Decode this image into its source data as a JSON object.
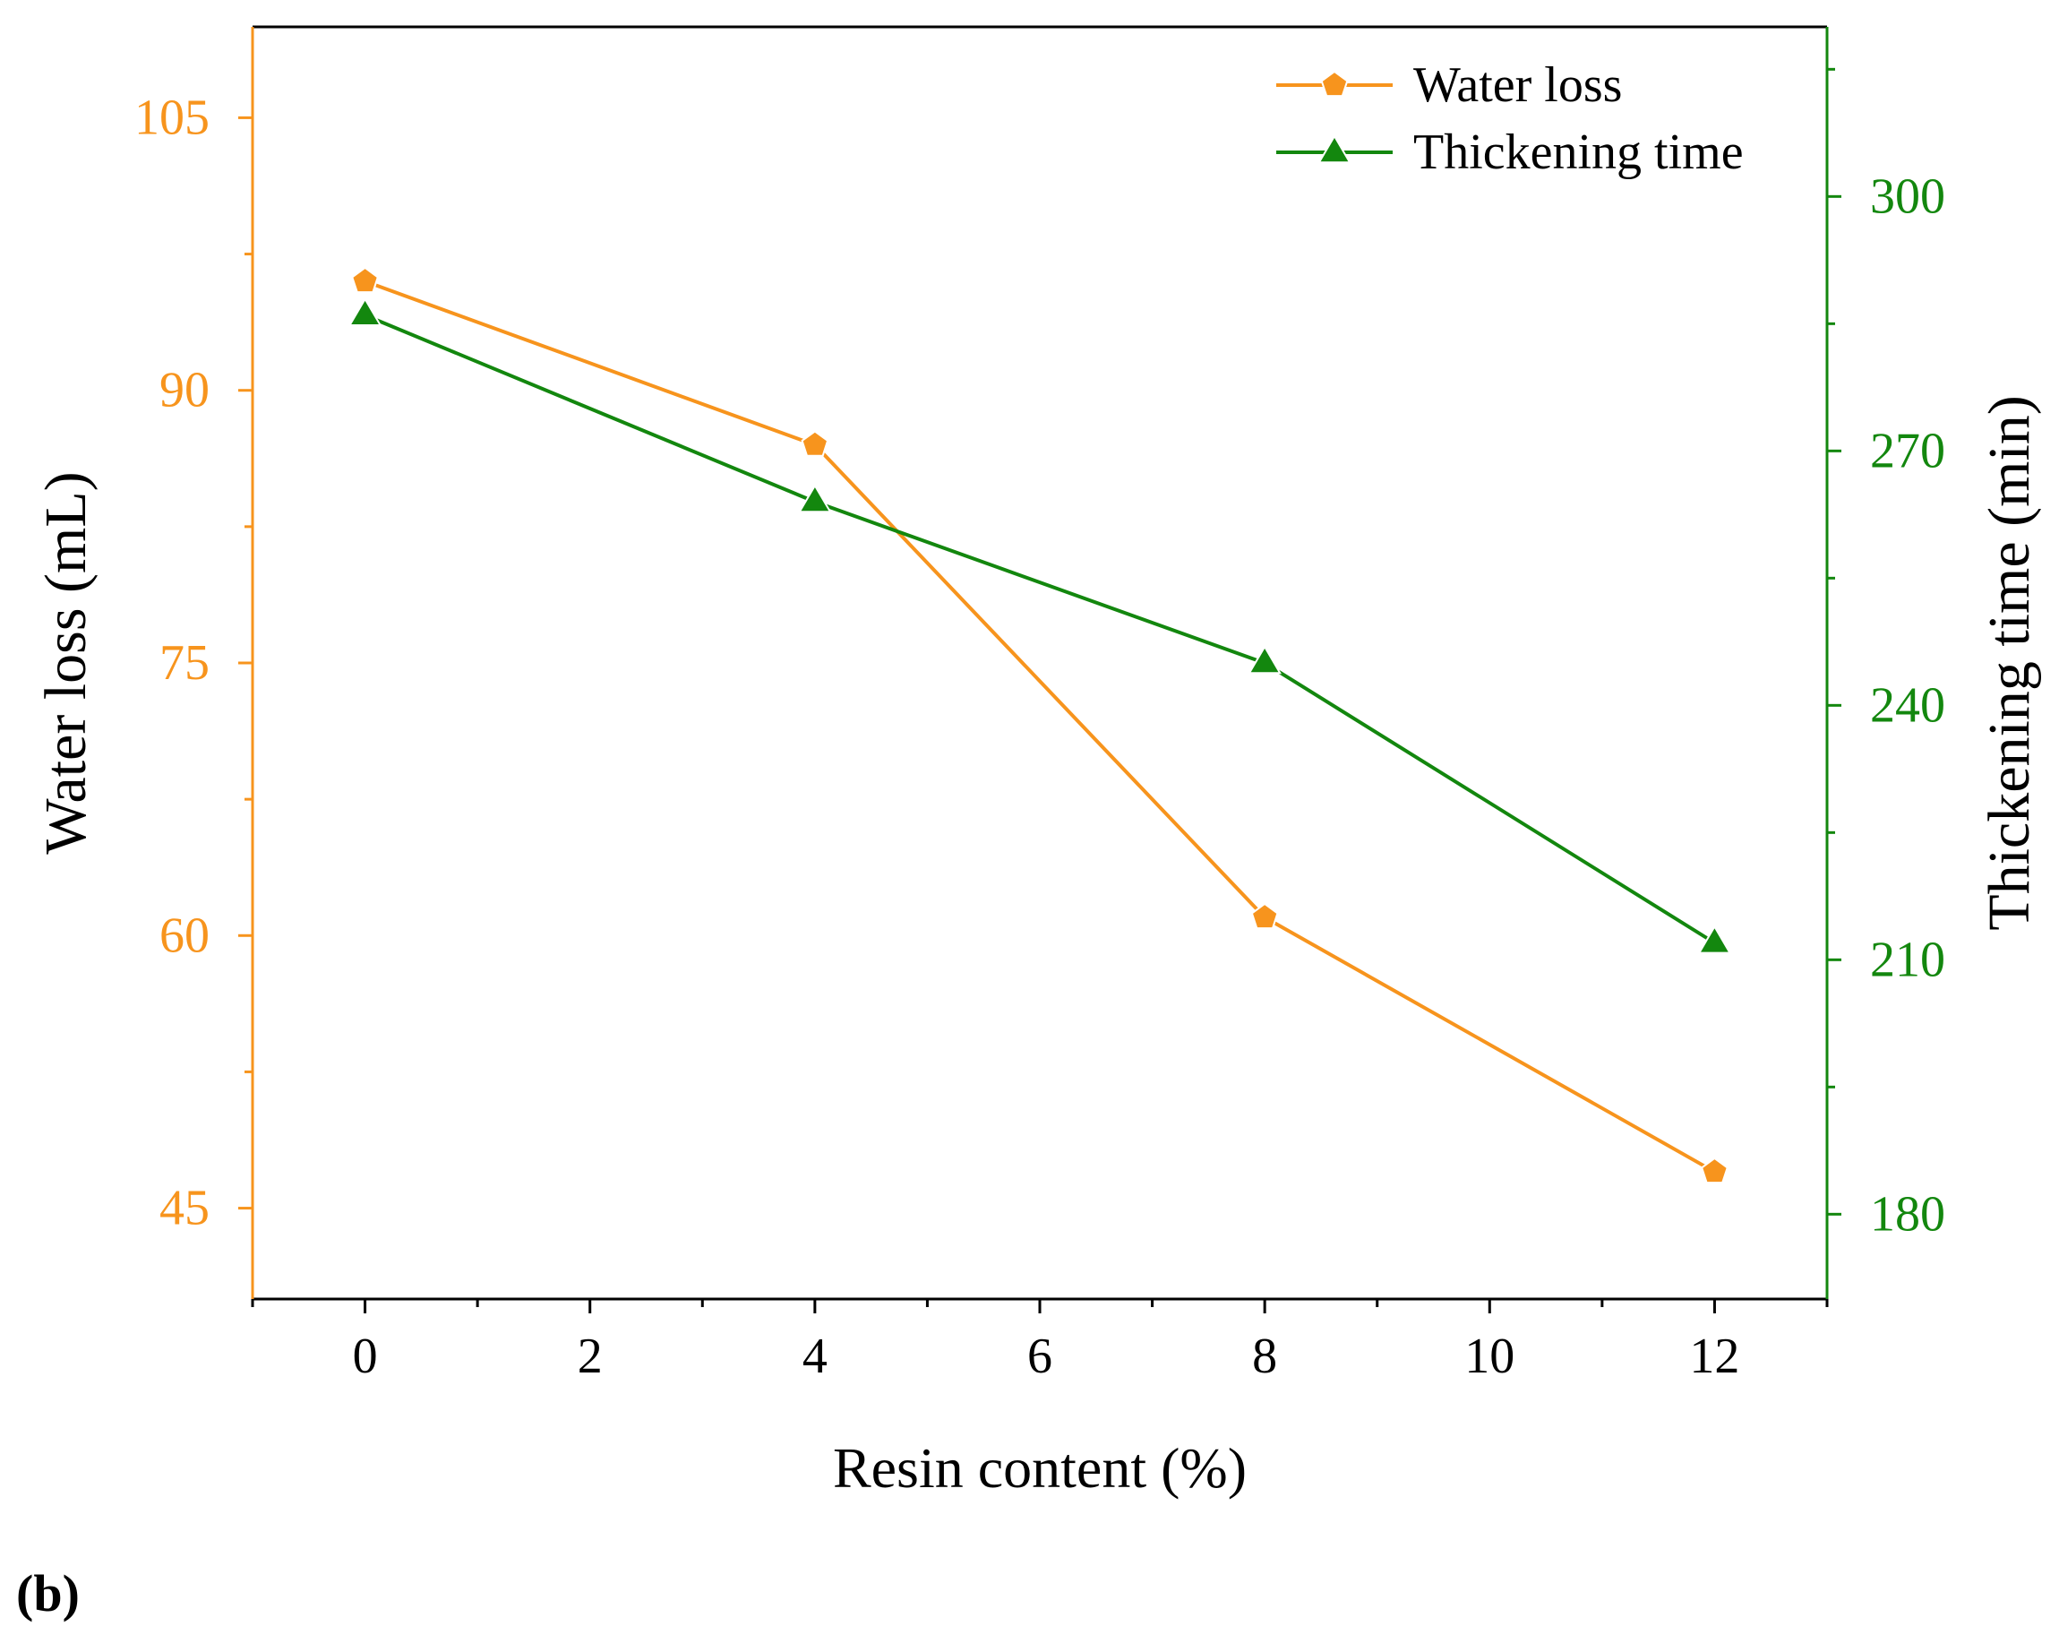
{
  "panel_label": "(b)",
  "colors": {
    "water": "#F7941D",
    "thick": "#13870E",
    "axis_text": "#000000"
  },
  "chart_data": {
    "type": "line",
    "x": [
      0,
      4,
      8,
      12
    ],
    "xlabel": "Resin content (%)",
    "xlim": [
      -1,
      13
    ],
    "xticks": [
      0,
      2,
      4,
      6,
      8,
      10,
      12
    ],
    "xtick_labels": [
      "0",
      "2",
      "4",
      "6",
      "8",
      "10",
      "12"
    ],
    "left_axis": {
      "label": "Water loss (mL)",
      "ylim": [
        40,
        110
      ],
      "ticks": [
        45,
        60,
        75,
        90,
        105
      ],
      "tick_labels": [
        "45",
        "60",
        "75",
        "90",
        "105"
      ]
    },
    "right_axis": {
      "label": "Thickening time (min)",
      "ylim": [
        170,
        320
      ],
      "ticks": [
        180,
        210,
        240,
        270,
        300
      ],
      "tick_labels": [
        "180",
        "210",
        "240",
        "270",
        "300"
      ]
    },
    "series": [
      {
        "name": "Water loss",
        "axis": "left",
        "marker": "pentagon",
        "values": [
          96,
          87,
          61,
          47
        ]
      },
      {
        "name": "Thickening time",
        "axis": "right",
        "marker": "triangle",
        "values": [
          286,
          264,
          245,
          212
        ]
      }
    ],
    "legend_position": "top-right",
    "grid": false
  }
}
